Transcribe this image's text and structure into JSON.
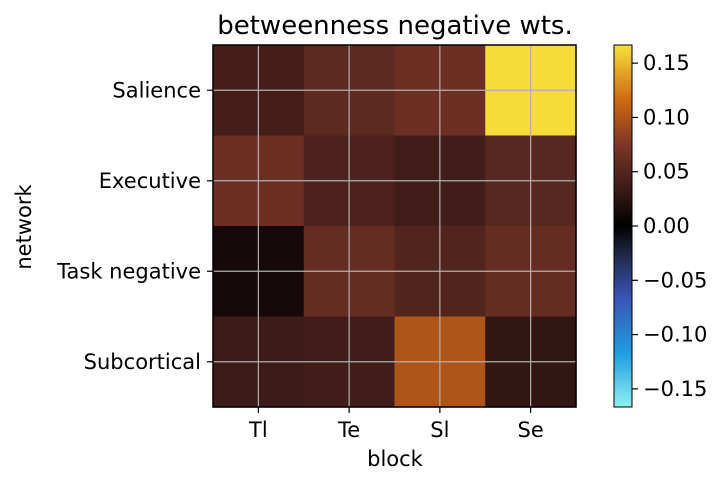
{
  "chart_data": {
    "type": "heatmap",
    "title": "betweenness negative wts.",
    "xlabel": "block",
    "ylabel": "network",
    "x_categories": [
      "Tl",
      "Te",
      "Sl",
      "Se"
    ],
    "y_categories": [
      "Salience",
      "Executive",
      "Task negative",
      "Subcortical"
    ],
    "values": [
      [
        0.04,
        0.055,
        0.065,
        0.165
      ],
      [
        0.065,
        0.045,
        0.038,
        0.052
      ],
      [
        0.012,
        0.06,
        0.048,
        0.06
      ],
      [
        0.035,
        0.038,
        0.1,
        0.028
      ]
    ],
    "grid": true,
    "colorbar": {
      "min": -0.1667,
      "max": 0.1667,
      "ticks": [
        0.15,
        0.1,
        0.05,
        0.0,
        -0.05,
        -0.1,
        -0.15
      ],
      "tick_labels": [
        "0.15",
        "0.10",
        "0.05",
        "0.00",
        "−0.05",
        "−0.10",
        "−0.15"
      ]
    }
  }
}
